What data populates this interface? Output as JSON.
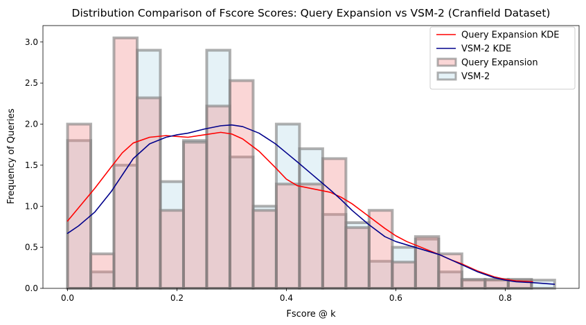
{
  "chart_data": {
    "type": "histogram",
    "title": "Distribution Comparison of Fscore Scores: Query Expansion vs VSM-2 (Cranfield Dataset)",
    "xlabel": "Fscore @ k",
    "ylabel": "Frequency of Queries",
    "xlim": [
      -0.045,
      0.935
    ],
    "ylim": [
      0,
      3.2
    ],
    "xticks": [
      0.0,
      0.2,
      0.4,
      0.6,
      0.8
    ],
    "xtick_labels": [
      "0.0",
      "0.2",
      "0.4",
      "0.6",
      "0.8"
    ],
    "yticks": [
      0.0,
      0.5,
      1.0,
      1.5,
      2.0,
      2.5,
      3.0
    ],
    "ytick_labels": [
      "0.0",
      "0.5",
      "1.0",
      "1.5",
      "2.0",
      "2.5",
      "3.0"
    ],
    "grid": false,
    "legend_position": "top-right",
    "histograms": [
      {
        "name": "VSM-2",
        "color": "#ADD8E6",
        "edge_color": "#808080",
        "bin_edges": [
          0.0,
          0.0424,
          0.0848,
          0.1272,
          0.1696,
          0.212,
          0.2544,
          0.2968,
          0.3392,
          0.3816,
          0.424,
          0.4664,
          0.5088,
          0.5512,
          0.5936,
          0.636,
          0.6784,
          0.7208,
          0.7632,
          0.8056,
          0.848,
          0.8904
        ],
        "values": [
          1.8,
          0.2,
          1.5,
          2.9,
          1.3,
          1.8,
          2.9,
          1.6,
          1.0,
          2.0,
          1.7,
          0.9,
          0.8,
          0.33,
          0.5,
          0.6,
          0.2,
          0.1,
          0.1,
          0.1,
          0.1
        ]
      },
      {
        "name": "Query Expansion",
        "color": "#F08080",
        "edge_color": "#808080",
        "bin_edges": [
          0.0,
          0.0424,
          0.0848,
          0.1272,
          0.1696,
          0.212,
          0.2544,
          0.2968,
          0.3392,
          0.3816,
          0.424,
          0.4664,
          0.5088,
          0.5512,
          0.5936,
          0.636,
          0.6784,
          0.7208,
          0.7632,
          0.8056,
          0.848
        ],
        "values": [
          2.0,
          0.42,
          3.05,
          2.32,
          0.95,
          1.78,
          2.22,
          2.53,
          0.95,
          1.27,
          1.27,
          1.58,
          0.74,
          0.95,
          0.32,
          0.63,
          0.42,
          0.11,
          0.11,
          0.11
        ]
      }
    ],
    "kde": [
      {
        "name": "Query Expansion KDE",
        "color": "#FF0000",
        "x": [
          0.0,
          0.02,
          0.05,
          0.08,
          0.1,
          0.12,
          0.15,
          0.18,
          0.2,
          0.22,
          0.25,
          0.28,
          0.3,
          0.32,
          0.35,
          0.38,
          0.4,
          0.42,
          0.45,
          0.48,
          0.5,
          0.52,
          0.55,
          0.58,
          0.6,
          0.62,
          0.65,
          0.68,
          0.7,
          0.72,
          0.75,
          0.78,
          0.8,
          0.82,
          0.85
        ],
        "y": [
          0.82,
          0.98,
          1.22,
          1.48,
          1.65,
          1.77,
          1.84,
          1.86,
          1.85,
          1.84,
          1.87,
          1.9,
          1.88,
          1.82,
          1.67,
          1.47,
          1.33,
          1.25,
          1.21,
          1.17,
          1.11,
          1.03,
          0.88,
          0.73,
          0.64,
          0.57,
          0.49,
          0.41,
          0.35,
          0.3,
          0.21,
          0.14,
          0.11,
          0.09,
          0.08
        ]
      },
      {
        "name": "VSM-2 KDE",
        "color": "#00008B",
        "x": [
          0.0,
          0.02,
          0.05,
          0.08,
          0.1,
          0.12,
          0.15,
          0.18,
          0.2,
          0.22,
          0.25,
          0.28,
          0.3,
          0.32,
          0.35,
          0.38,
          0.4,
          0.42,
          0.45,
          0.48,
          0.5,
          0.52,
          0.55,
          0.58,
          0.6,
          0.62,
          0.65,
          0.68,
          0.7,
          0.72,
          0.75,
          0.78,
          0.8,
          0.82,
          0.85,
          0.89
        ],
        "y": [
          0.67,
          0.76,
          0.93,
          1.18,
          1.38,
          1.58,
          1.76,
          1.84,
          1.87,
          1.89,
          1.94,
          1.98,
          1.99,
          1.97,
          1.89,
          1.76,
          1.65,
          1.54,
          1.37,
          1.2,
          1.08,
          0.95,
          0.78,
          0.63,
          0.57,
          0.53,
          0.47,
          0.41,
          0.35,
          0.29,
          0.2,
          0.13,
          0.1,
          0.08,
          0.07,
          0.05
        ]
      }
    ],
    "legend": [
      {
        "label": "Query Expansion KDE",
        "kind": "line",
        "color": "#FF0000"
      },
      {
        "label": "VSM-2 KDE",
        "kind": "line",
        "color": "#00008B"
      },
      {
        "label": "Query Expansion",
        "kind": "patch",
        "color": "#F08080"
      },
      {
        "label": "VSM-2",
        "kind": "patch",
        "color": "#ADD8E6"
      }
    ]
  }
}
